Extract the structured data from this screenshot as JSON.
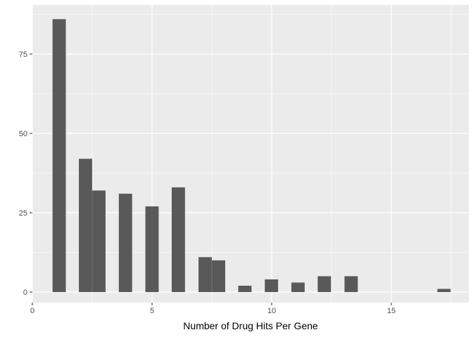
{
  "chart_data": {
    "type": "bar",
    "title": "",
    "xlabel": "Number of Drug Hits Per Gene",
    "ylabel": "",
    "xlim": [
      0,
      18
    ],
    "ylim": [
      0,
      90
    ],
    "x_ticks": [
      0,
      5,
      10,
      15
    ],
    "y_ticks": [
      0,
      25,
      50,
      75
    ],
    "grid": true,
    "colors": {
      "panel": "#EBEBEB",
      "grid": "#FFFFFF",
      "bar": "#595959",
      "tick": "#333333"
    },
    "bars": [
      {
        "x": 1.12,
        "value": 86
      },
      {
        "x": 2.22,
        "value": 42
      },
      {
        "x": 2.78,
        "value": 32
      },
      {
        "x": 3.89,
        "value": 31
      },
      {
        "x": 5.0,
        "value": 27
      },
      {
        "x": 6.1,
        "value": 33
      },
      {
        "x": 7.22,
        "value": 11
      },
      {
        "x": 7.78,
        "value": 10
      },
      {
        "x": 8.88,
        "value": 2
      },
      {
        "x": 9.99,
        "value": 4
      },
      {
        "x": 11.1,
        "value": 3
      },
      {
        "x": 12.2,
        "value": 5
      },
      {
        "x": 13.32,
        "value": 5
      },
      {
        "x": 17.2,
        "value": 1
      }
    ],
    "bin_width": 0.555
  }
}
